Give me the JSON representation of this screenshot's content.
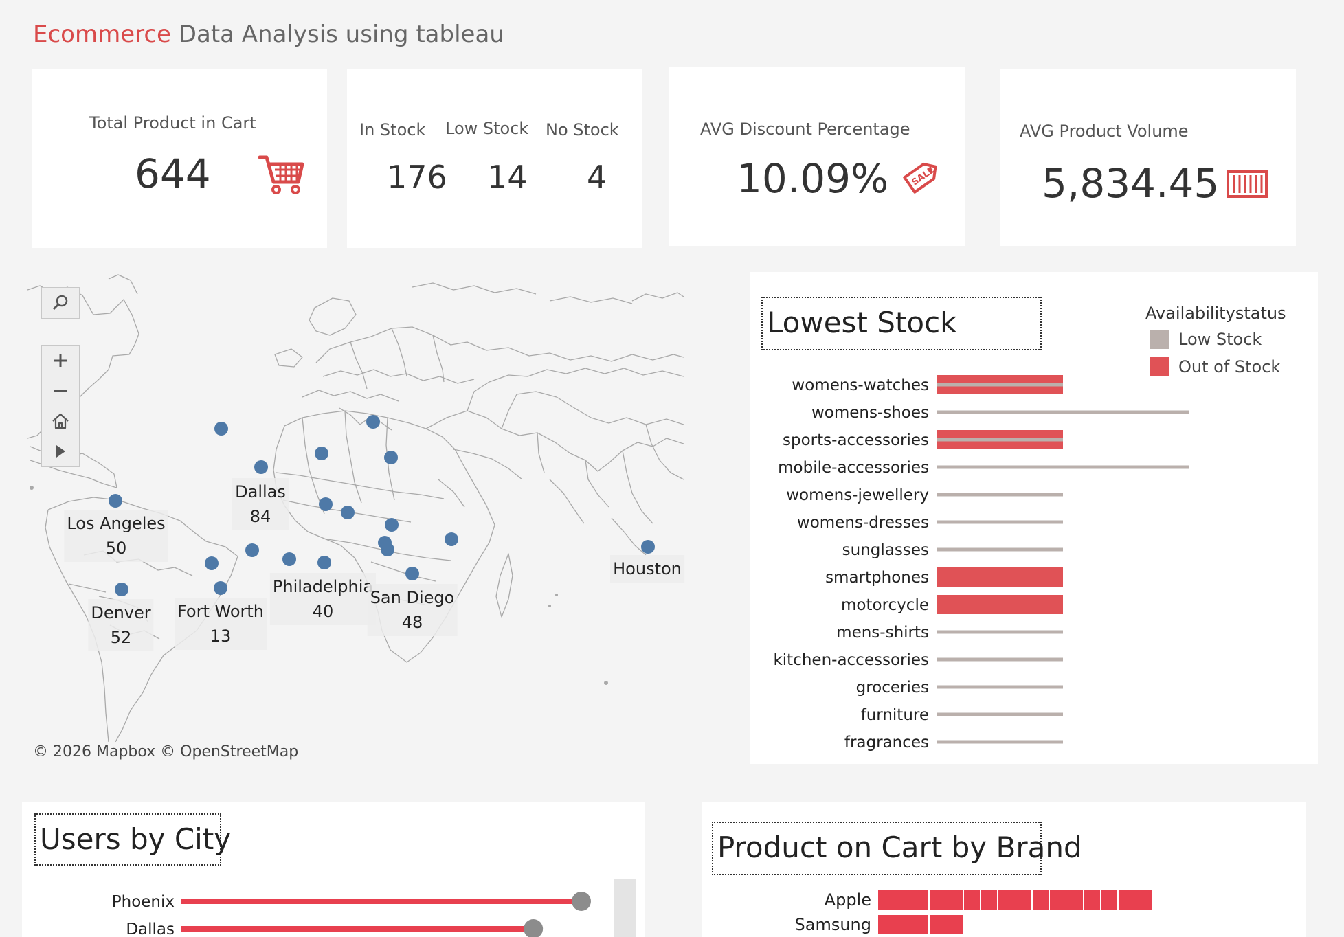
{
  "header": {
    "title_accent": "Ecommerce",
    "title_rest": "Data Analysis using tableau"
  },
  "colors": {
    "accent": "#d94a4a",
    "bar_red": "#e05256",
    "bar_gray": "#bab0ac",
    "dot_blue": "#4e79a7",
    "line_red": "#e8404f"
  },
  "kpis": {
    "cart": {
      "label": "Total Product in Cart",
      "value": "644",
      "icon": "cart-icon"
    },
    "stock": {
      "in_label": "In Stock",
      "in_value": "176",
      "low_label": "Low Stock",
      "low_value": "14",
      "no_label": "No  Stock",
      "no_value": "4"
    },
    "discount": {
      "label": "AVG Discount Percentage",
      "value": "10.09%",
      "icon": "sale-tag-icon"
    },
    "volume": {
      "label": "AVG Product Volume",
      "value": "5,834.45",
      "icon": "container-icon"
    }
  },
  "map": {
    "credit": "© 2026 Mapbox  © OpenStreetMap",
    "tools": [
      "search-icon",
      "zoom-in-icon",
      "zoom-out-icon",
      "home-icon",
      "play-icon"
    ],
    "labels": [
      {
        "city": "Dallas",
        "value": "84"
      },
      {
        "city": "Los Angeles",
        "value": "50"
      },
      {
        "city": "Denver",
        "value": "52"
      },
      {
        "city": "Fort Worth",
        "value": "13"
      },
      {
        "city": "Philadelphia",
        "value": "40"
      },
      {
        "city": "San Diego",
        "value": "48"
      },
      {
        "city": "Houston",
        "value": ""
      }
    ]
  },
  "lowest_stock": {
    "title": "Lowest Stock",
    "legend_title": "Availabilitystatus",
    "legend": [
      {
        "label": "Low Stock",
        "color": "#bab0ac"
      },
      {
        "label": "Out of Stock",
        "color": "#e05256"
      }
    ]
  },
  "users_by_city": {
    "title": "Users by City"
  },
  "brand_chart": {
    "title": "Product on Cart by Brand"
  },
  "chart_data": [
    {
      "type": "bar",
      "title": "Lowest Stock",
      "legend_title": "Availabilitystatus",
      "categories": [
        "womens-watches",
        "womens-shoes",
        "sports-accessories",
        "mobile-accessories",
        "womens-jewellery",
        "womens-dresses",
        "sunglasses",
        "smartphones",
        "motorcycle",
        "mens-shirts",
        "kitchen-accessories",
        "groceries",
        "furniture",
        "fragrances"
      ],
      "series": [
        {
          "name": "Low Stock",
          "values": [
            1,
            2,
            1,
            2,
            1,
            1,
            1,
            0,
            0,
            1,
            1,
            1,
            1,
            1
          ]
        },
        {
          "name": "Out of Stock",
          "values": [
            1,
            0,
            1,
            0,
            0,
            0,
            0,
            1,
            1,
            0,
            0,
            0,
            0,
            0
          ]
        }
      ]
    },
    {
      "type": "bar",
      "title": "Users by City",
      "categories": [
        "Phoenix",
        "Dallas"
      ],
      "values": [
        100,
        88
      ]
    },
    {
      "type": "bar",
      "title": "Product on Cart by Brand",
      "categories": [
        "Apple",
        "Samsung"
      ],
      "values": [
        16,
        5
      ]
    }
  ]
}
